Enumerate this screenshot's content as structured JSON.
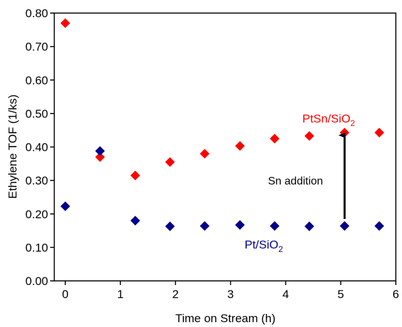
{
  "chart_data": {
    "type": "scatter",
    "xlabel": "Time on Stream (h)",
    "ylabel": "Ethylene TOF (1/ks)",
    "xlim": [
      -0.2,
      6
    ],
    "ylim": [
      0,
      0.8
    ],
    "xticks": [
      0,
      1,
      2,
      3,
      4,
      5,
      6
    ],
    "yticks": [
      "0.00",
      "0.10",
      "0.20",
      "0.30",
      "0.40",
      "0.50",
      "0.60",
      "0.70",
      "0.80"
    ],
    "grid": false,
    "marker": "diamond",
    "series": [
      {
        "name_main": "PtSn/SiO",
        "name_sub": "2",
        "color": "#ff0000",
        "x": [
          0.0,
          0.63,
          1.27,
          1.9,
          2.53,
          3.17,
          3.8,
          4.43,
          5.07,
          5.7
        ],
        "y": [
          0.77,
          0.37,
          0.315,
          0.355,
          0.38,
          0.403,
          0.425,
          0.433,
          0.443,
          0.443
        ]
      },
      {
        "name_main": "Pt/SiO",
        "name_sub": "2",
        "color": "#00008b",
        "x": [
          0.0,
          0.63,
          1.27,
          1.9,
          2.53,
          3.17,
          3.8,
          4.43,
          5.07,
          5.7
        ],
        "y": [
          0.223,
          0.388,
          0.18,
          0.163,
          0.164,
          0.167,
          0.164,
          0.163,
          0.164,
          0.164
        ]
      }
    ],
    "annotations": [
      {
        "text": "Sn addition",
        "arrow_x": 5.07,
        "arrow_from_y": 0.185,
        "arrow_to_y": 0.435
      }
    ]
  }
}
